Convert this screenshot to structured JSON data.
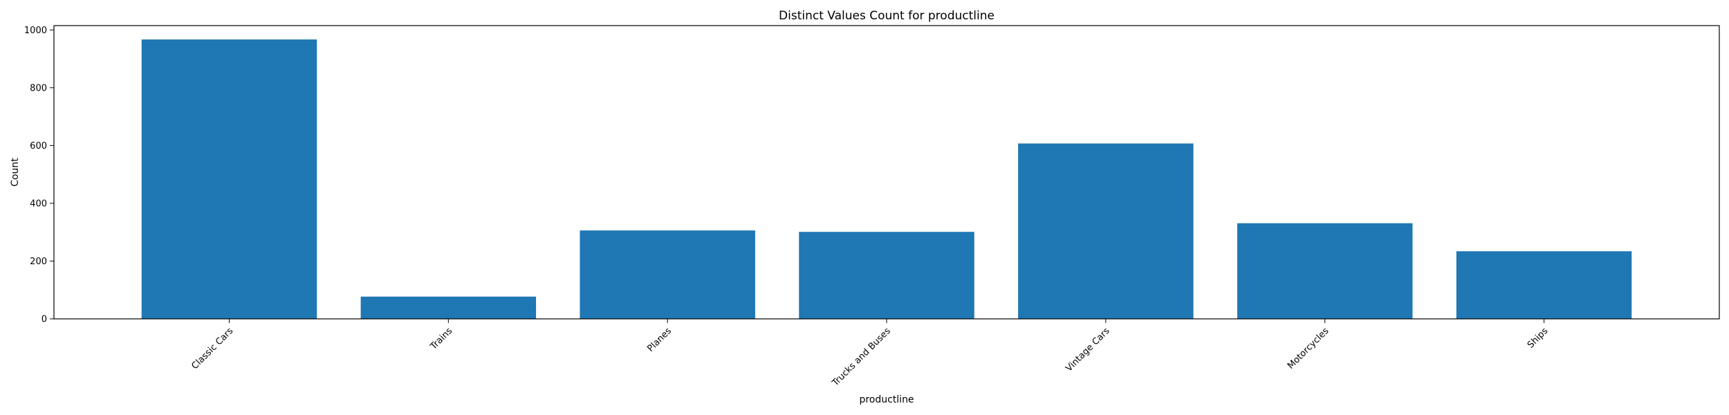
{
  "chart_data": {
    "type": "bar",
    "title": "Distinct Values Count for productline",
    "xlabel": "productline",
    "ylabel": "Count",
    "categories": [
      "Classic Cars",
      "Trains",
      "Planes",
      "Trucks and Buses",
      "Vintage Cars",
      "Motorcycles",
      "Ships"
    ],
    "values": [
      967,
      77,
      306,
      301,
      607,
      331,
      234
    ],
    "ylim": [
      0,
      1015
    ],
    "yticks": [
      0,
      200,
      400,
      600,
      800,
      1000
    ],
    "bar_color": "#1f77b4",
    "grid": false,
    "legend": "none"
  }
}
